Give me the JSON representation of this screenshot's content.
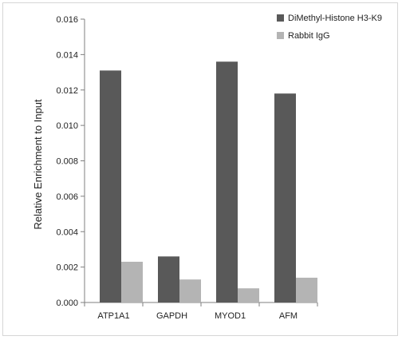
{
  "chart_data": {
    "type": "bar",
    "categories": [
      "ATP1A1",
      "GAPDH",
      "MYOD1",
      "AFM"
    ],
    "series": [
      {
        "name": "DiMethyl-Histone H3-K9",
        "values": [
          0.0131,
          0.0026,
          0.0136,
          0.0118
        ],
        "color": "#595959"
      },
      {
        "name": "Rabbit IgG",
        "values": [
          0.0023,
          0.0013,
          0.0008,
          0.0014
        ],
        "color": "#b4b4b4"
      }
    ],
    "title": "",
    "xlabel": "",
    "ylabel": "Relative Enrichment to Input",
    "ylim": [
      0,
      0.016
    ],
    "yticks": [
      0.0,
      0.002,
      0.004,
      0.006,
      0.008,
      0.01,
      0.012,
      0.014,
      0.016
    ],
    "ytick_labels": [
      "0.000",
      "0.002",
      "0.004",
      "0.006",
      "0.008",
      "0.010",
      "0.012",
      "0.014",
      "0.016"
    ],
    "grid": false,
    "legend_position": "top-right"
  }
}
